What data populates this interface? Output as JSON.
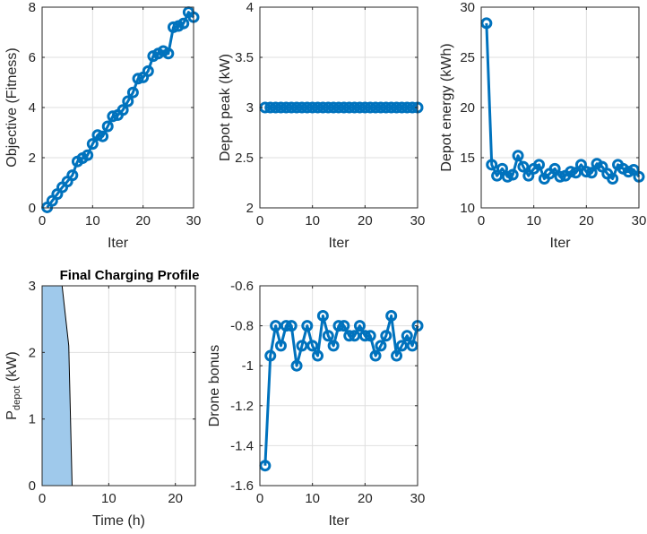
{
  "figure": {
    "background": "#ffffff"
  },
  "chart_data": [
    {
      "id": "obj",
      "type": "line",
      "title": "",
      "xlabel": "Iter",
      "ylabel": "Objective (Fitness)",
      "xlim": [
        0,
        30
      ],
      "ylim": [
        0,
        8
      ],
      "xticks": [
        0,
        10,
        20,
        30
      ],
      "yticks": [
        0,
        2,
        4,
        6,
        8
      ],
      "grid": true,
      "series": [
        {
          "color": "#0072BD",
          "marker": "circle",
          "x": [
            1,
            2,
            3,
            4,
            5,
            6,
            7,
            8,
            9,
            10,
            11,
            12,
            13,
            14,
            15,
            16,
            17,
            18,
            19,
            20,
            21,
            22,
            23,
            24,
            25,
            26,
            27,
            28,
            29,
            30
          ],
          "y": [
            0.02,
            0.28,
            0.55,
            0.82,
            1.05,
            1.3,
            1.85,
            1.98,
            2.1,
            2.55,
            2.9,
            2.85,
            3.25,
            3.65,
            3.7,
            3.9,
            4.25,
            4.6,
            5.15,
            5.2,
            5.45,
            6.05,
            6.15,
            6.25,
            6.15,
            7.2,
            7.25,
            7.35,
            7.8,
            7.6
          ]
        }
      ]
    },
    {
      "id": "peak",
      "type": "line",
      "title": "",
      "xlabel": "Iter",
      "ylabel": "Depot peak (kW)",
      "xlim": [
        0,
        30
      ],
      "ylim": [
        2,
        4
      ],
      "xticks": [
        0,
        10,
        20,
        30
      ],
      "yticks": [
        2,
        2.5,
        3,
        3.5,
        4
      ],
      "grid": true,
      "series": [
        {
          "color": "#0072BD",
          "marker": "circle",
          "x": [
            1,
            2,
            3,
            4,
            5,
            6,
            7,
            8,
            9,
            10,
            11,
            12,
            13,
            14,
            15,
            16,
            17,
            18,
            19,
            20,
            21,
            22,
            23,
            24,
            25,
            26,
            27,
            28,
            29,
            30
          ],
          "y": [
            3,
            3,
            3,
            3,
            3,
            3,
            3,
            3,
            3,
            3,
            3,
            3,
            3,
            3,
            3,
            3,
            3,
            3,
            3,
            3,
            3,
            3,
            3,
            3,
            3,
            3,
            3,
            3,
            3,
            3
          ]
        }
      ]
    },
    {
      "id": "energy",
      "type": "line",
      "title": "",
      "xlabel": "Iter",
      "ylabel": "Depot energy (kWh)",
      "xlim": [
        0,
        30
      ],
      "ylim": [
        10,
        30
      ],
      "xticks": [
        0,
        10,
        20,
        30
      ],
      "yticks": [
        10,
        15,
        20,
        25,
        30
      ],
      "grid": true,
      "series": [
        {
          "color": "#0072BD",
          "marker": "circle",
          "x": [
            1,
            2,
            3,
            4,
            5,
            6,
            7,
            8,
            9,
            10,
            11,
            12,
            13,
            14,
            15,
            16,
            17,
            18,
            19,
            20,
            21,
            22,
            23,
            24,
            25,
            26,
            27,
            28,
            29,
            30
          ],
          "y": [
            28.4,
            14.3,
            13.2,
            13.9,
            13.1,
            13.3,
            15.2,
            14.1,
            13.2,
            13.9,
            14.3,
            12.9,
            13.4,
            13.9,
            13.1,
            13.2,
            13.6,
            13.5,
            14.3,
            13.6,
            13.5,
            14.4,
            14.1,
            13.4,
            12.9,
            14.3,
            13.9,
            13.6,
            13.8,
            13.1
          ]
        }
      ]
    },
    {
      "id": "profile",
      "type": "area",
      "title": "Final Charging Profile",
      "xlabel": "Time (h)",
      "ylabel_main": "P",
      "ylabel_sub": "depot",
      "ylabel_tail": " (kW)",
      "xlim": [
        0,
        23
      ],
      "ylim": [
        0,
        3
      ],
      "xticks": [
        0,
        10,
        20
      ],
      "yticks": [
        0,
        1,
        2,
        3
      ],
      "grid": true,
      "series": [
        {
          "fill": "#9FC9EB",
          "color": "#000000",
          "x": [
            0,
            1,
            2,
            3,
            4,
            4.5,
            5,
            10,
            15,
            20,
            23
          ],
          "y": [
            3,
            3,
            3,
            3,
            2.1,
            0,
            0,
            0,
            0,
            0,
            0
          ]
        }
      ]
    },
    {
      "id": "bonus",
      "type": "line",
      "title": "",
      "xlabel": "Iter",
      "ylabel": "Drone bonus",
      "xlim": [
        0,
        30
      ],
      "ylim": [
        -1.6,
        -0.6
      ],
      "xticks": [
        0,
        10,
        20,
        30
      ],
      "yticks": [
        -1.6,
        -1.4,
        -1.2,
        -1,
        -0.8,
        -0.6
      ],
      "grid": true,
      "series": [
        {
          "color": "#0072BD",
          "marker": "circle",
          "x": [
            1,
            2,
            3,
            4,
            5,
            6,
            7,
            8,
            9,
            10,
            11,
            12,
            13,
            14,
            15,
            16,
            17,
            18,
            19,
            20,
            21,
            22,
            23,
            24,
            25,
            26,
            27,
            28,
            29,
            30
          ],
          "y": [
            -1.5,
            -0.95,
            -0.8,
            -0.9,
            -0.8,
            -0.8,
            -1.0,
            -0.9,
            -0.8,
            -0.9,
            -0.95,
            -0.75,
            -0.85,
            -0.9,
            -0.8,
            -0.8,
            -0.85,
            -0.85,
            -0.8,
            -0.85,
            -0.85,
            -0.95,
            -0.9,
            -0.85,
            -0.75,
            -0.95,
            -0.9,
            -0.85,
            -0.9,
            -0.8
          ]
        }
      ]
    }
  ]
}
